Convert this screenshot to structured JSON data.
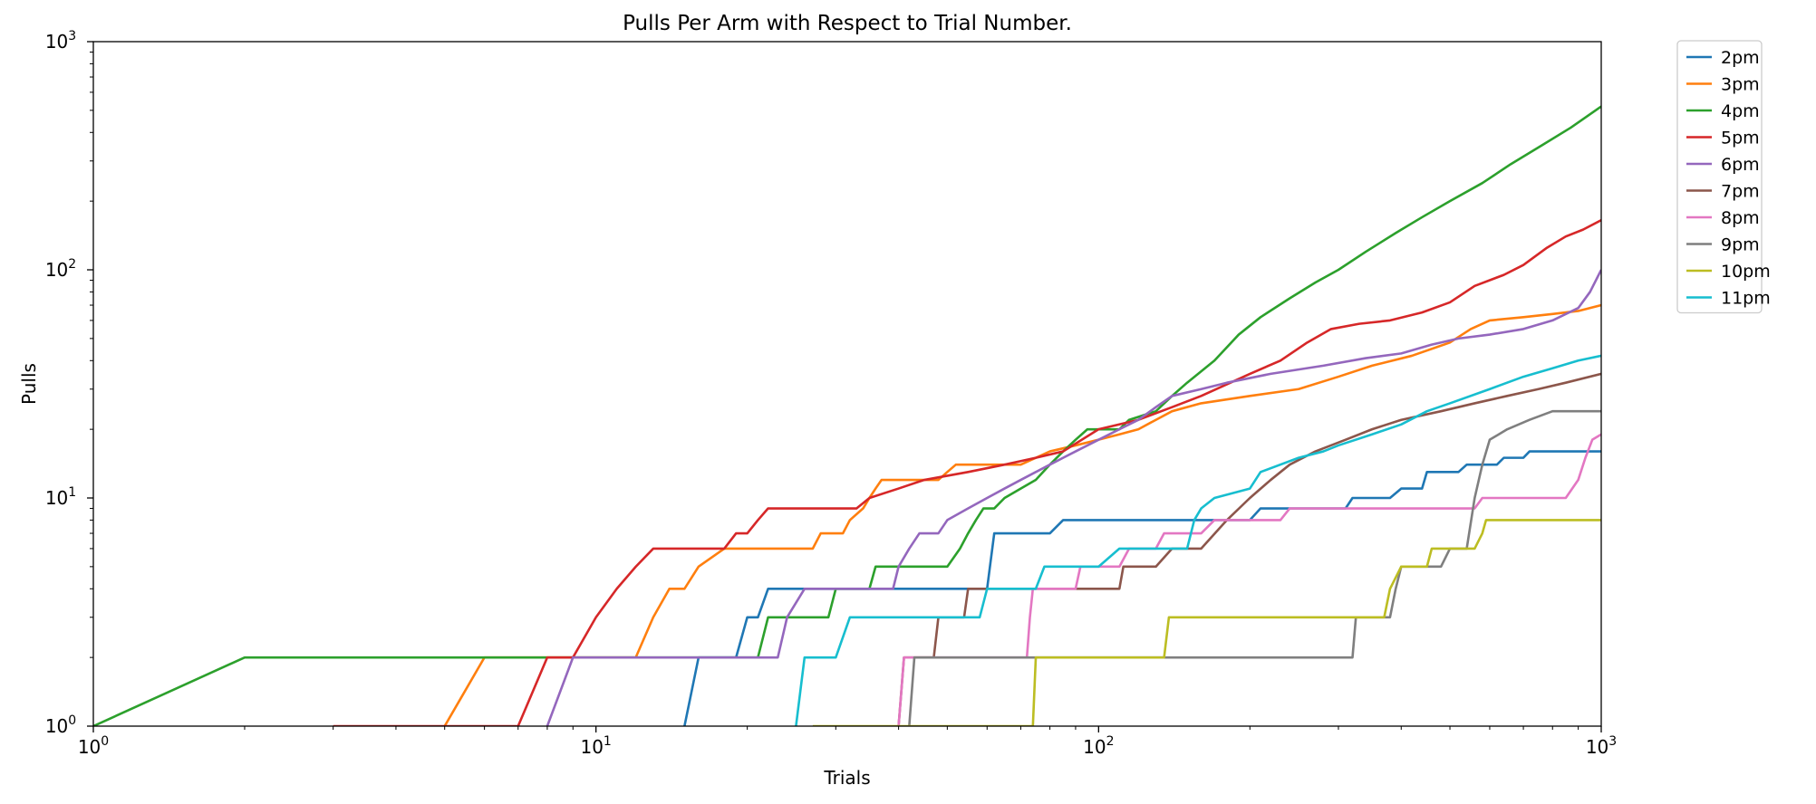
{
  "chart_data": {
    "type": "line",
    "title": "Pulls Per Arm with Respect to Trial Number.",
    "xlabel": "Trials",
    "ylabel": "Pulls",
    "xscale": "log",
    "yscale": "log",
    "xlim": [
      1,
      1000
    ],
    "ylim": [
      1,
      1000
    ],
    "grid": false,
    "legend_position": "outside-top-right",
    "x_ticks": [
      {
        "value": 1,
        "base": "10",
        "exp": "0"
      },
      {
        "value": 10,
        "base": "10",
        "exp": "1"
      },
      {
        "value": 100,
        "base": "10",
        "exp": "2"
      },
      {
        "value": 1000,
        "base": "10",
        "exp": "3"
      }
    ],
    "y_ticks": [
      {
        "value": 1,
        "base": "10",
        "exp": "0"
      },
      {
        "value": 10,
        "base": "10",
        "exp": "1"
      },
      {
        "value": 100,
        "base": "10",
        "exp": "2"
      },
      {
        "value": 1000,
        "base": "10",
        "exp": "3"
      }
    ],
    "series": [
      {
        "name": "2pm",
        "color": "#1f77b4",
        "points": [
          [
            15,
            1
          ],
          [
            16,
            2
          ],
          [
            19,
            2
          ],
          [
            20,
            3
          ],
          [
            21,
            3
          ],
          [
            22,
            4
          ],
          [
            60,
            4
          ],
          [
            62,
            7
          ],
          [
            80,
            7
          ],
          [
            85,
            8
          ],
          [
            200,
            8
          ],
          [
            210,
            9
          ],
          [
            310,
            9
          ],
          [
            320,
            10
          ],
          [
            380,
            10
          ],
          [
            400,
            11
          ],
          [
            440,
            11
          ],
          [
            450,
            13
          ],
          [
            520,
            13
          ],
          [
            540,
            14
          ],
          [
            620,
            14
          ],
          [
            640,
            15
          ],
          [
            700,
            15
          ],
          [
            720,
            16
          ],
          [
            1000,
            16
          ]
        ]
      },
      {
        "name": "3pm",
        "color": "#ff7f0e",
        "points": [
          [
            5,
            1
          ],
          [
            6,
            2
          ],
          [
            12,
            2
          ],
          [
            13,
            3
          ],
          [
            14,
            4
          ],
          [
            15,
            4
          ],
          [
            16,
            5
          ],
          [
            18,
            6
          ],
          [
            27,
            6
          ],
          [
            28,
            7
          ],
          [
            31,
            7
          ],
          [
            32,
            8
          ],
          [
            34,
            9
          ],
          [
            35,
            10
          ],
          [
            36,
            11
          ],
          [
            37,
            12
          ],
          [
            48,
            12
          ],
          [
            50,
            13
          ],
          [
            52,
            14
          ],
          [
            70,
            14
          ],
          [
            75,
            15
          ],
          [
            80,
            16
          ],
          [
            90,
            17
          ],
          [
            100,
            18
          ],
          [
            110,
            19
          ],
          [
            120,
            20
          ],
          [
            130,
            22
          ],
          [
            140,
            24
          ],
          [
            160,
            26
          ],
          [
            200,
            28
          ],
          [
            250,
            30
          ],
          [
            300,
            34
          ],
          [
            350,
            38
          ],
          [
            420,
            42
          ],
          [
            500,
            48
          ],
          [
            550,
            55
          ],
          [
            600,
            60
          ],
          [
            700,
            62
          ],
          [
            800,
            64
          ],
          [
            900,
            66
          ],
          [
            1000,
            70
          ]
        ]
      },
      {
        "name": "4pm",
        "color": "#2ca02c",
        "points": [
          [
            1,
            1
          ],
          [
            2,
            2
          ],
          [
            21,
            2
          ],
          [
            22,
            3
          ],
          [
            29,
            3
          ],
          [
            30,
            4
          ],
          [
            35,
            4
          ],
          [
            36,
            5
          ],
          [
            50,
            5
          ],
          [
            53,
            6
          ],
          [
            55,
            7
          ],
          [
            57,
            8
          ],
          [
            59,
            9
          ],
          [
            62,
            9
          ],
          [
            65,
            10
          ],
          [
            70,
            11
          ],
          [
            75,
            12
          ],
          [
            80,
            14
          ],
          [
            85,
            16
          ],
          [
            90,
            18
          ],
          [
            95,
            20
          ],
          [
            110,
            20
          ],
          [
            115,
            22
          ],
          [
            130,
            24
          ],
          [
            140,
            28
          ],
          [
            150,
            32
          ],
          [
            170,
            40
          ],
          [
            190,
            52
          ],
          [
            210,
            62
          ],
          [
            240,
            75
          ],
          [
            270,
            88
          ],
          [
            300,
            100
          ],
          [
            340,
            120
          ],
          [
            390,
            145
          ],
          [
            440,
            170
          ],
          [
            500,
            200
          ],
          [
            580,
            240
          ],
          [
            660,
            290
          ],
          [
            760,
            350
          ],
          [
            870,
            420
          ],
          [
            1000,
            520
          ]
        ]
      },
      {
        "name": "5pm",
        "color": "#d62728",
        "points": [
          [
            3,
            1
          ],
          [
            7,
            1
          ],
          [
            8,
            2
          ],
          [
            9,
            2
          ],
          [
            10,
            3
          ],
          [
            11,
            4
          ],
          [
            12,
            5
          ],
          [
            13,
            6
          ],
          [
            18,
            6
          ],
          [
            19,
            7
          ],
          [
            20,
            7
          ],
          [
            21,
            8
          ],
          [
            22,
            9
          ],
          [
            33,
            9
          ],
          [
            35,
            10
          ],
          [
            40,
            11
          ],
          [
            45,
            12
          ],
          [
            55,
            13
          ],
          [
            65,
            14
          ],
          [
            75,
            15
          ],
          [
            85,
            16
          ],
          [
            100,
            20
          ],
          [
            120,
            22
          ],
          [
            140,
            25
          ],
          [
            160,
            28
          ],
          [
            200,
            35
          ],
          [
            230,
            40
          ],
          [
            260,
            48
          ],
          [
            290,
            55
          ],
          [
            330,
            58
          ],
          [
            380,
            60
          ],
          [
            440,
            65
          ],
          [
            500,
            72
          ],
          [
            560,
            85
          ],
          [
            640,
            95
          ],
          [
            700,
            105
          ],
          [
            780,
            125
          ],
          [
            850,
            140
          ],
          [
            920,
            150
          ],
          [
            1000,
            165
          ]
        ]
      },
      {
        "name": "6pm",
        "color": "#9467bd",
        "points": [
          [
            8,
            1
          ],
          [
            9,
            2
          ],
          [
            23,
            2
          ],
          [
            24,
            3
          ],
          [
            26,
            4
          ],
          [
            39,
            4
          ],
          [
            40,
            5
          ],
          [
            42,
            6
          ],
          [
            44,
            7
          ],
          [
            48,
            7
          ],
          [
            50,
            8
          ],
          [
            55,
            9
          ],
          [
            60,
            10
          ],
          [
            65,
            11
          ],
          [
            70,
            12
          ],
          [
            75,
            13
          ],
          [
            80,
            14
          ],
          [
            85,
            15
          ],
          [
            90,
            16
          ],
          [
            100,
            18
          ],
          [
            110,
            20
          ],
          [
            120,
            22
          ],
          [
            130,
            25
          ],
          [
            140,
            28
          ],
          [
            160,
            30
          ],
          [
            180,
            32
          ],
          [
            220,
            35
          ],
          [
            280,
            38
          ],
          [
            340,
            41
          ],
          [
            400,
            43
          ],
          [
            460,
            47
          ],
          [
            520,
            50
          ],
          [
            600,
            52
          ],
          [
            700,
            55
          ],
          [
            800,
            60
          ],
          [
            900,
            68
          ],
          [
            950,
            80
          ],
          [
            1000,
            100
          ]
        ]
      },
      {
        "name": "7pm",
        "color": "#8c564b",
        "points": [
          [
            40,
            1
          ],
          [
            41,
            2
          ],
          [
            47,
            2
          ],
          [
            48,
            3
          ],
          [
            54,
            3
          ],
          [
            55,
            4
          ],
          [
            60,
            4
          ],
          [
            62,
            4
          ],
          [
            80,
            4
          ],
          [
            85,
            4
          ],
          [
            110,
            4
          ],
          [
            112,
            5
          ],
          [
            130,
            5
          ],
          [
            140,
            6
          ],
          [
            160,
            6
          ],
          [
            180,
            8
          ],
          [
            200,
            10
          ],
          [
            220,
            12
          ],
          [
            240,
            14
          ],
          [
            270,
            16
          ],
          [
            310,
            18
          ],
          [
            350,
            20
          ],
          [
            400,
            22
          ],
          [
            480,
            24
          ],
          [
            560,
            26
          ],
          [
            650,
            28
          ],
          [
            750,
            30
          ],
          [
            850,
            32
          ],
          [
            1000,
            35
          ]
        ]
      },
      {
        "name": "8pm",
        "color": "#e377c2",
        "points": [
          [
            40,
            1
          ],
          [
            41,
            2
          ],
          [
            72,
            2
          ],
          [
            73,
            3
          ],
          [
            74,
            4
          ],
          [
            90,
            4
          ],
          [
            92,
            5
          ],
          [
            110,
            5
          ],
          [
            115,
            6
          ],
          [
            130,
            6
          ],
          [
            135,
            7
          ],
          [
            160,
            7
          ],
          [
            170,
            8
          ],
          [
            230,
            8
          ],
          [
            240,
            9
          ],
          [
            400,
            9
          ],
          [
            420,
            9
          ],
          [
            560,
            9
          ],
          [
            580,
            10
          ],
          [
            850,
            10
          ],
          [
            900,
            12
          ],
          [
            930,
            15
          ],
          [
            960,
            18
          ],
          [
            1000,
            19
          ]
        ]
      },
      {
        "name": "9pm",
        "color": "#7f7f7f",
        "points": [
          [
            42,
            1
          ],
          [
            43,
            2
          ],
          [
            320,
            2
          ],
          [
            325,
            3
          ],
          [
            380,
            3
          ],
          [
            390,
            4
          ],
          [
            400,
            5
          ],
          [
            480,
            5
          ],
          [
            500,
            6
          ],
          [
            540,
            6
          ],
          [
            560,
            10
          ],
          [
            580,
            14
          ],
          [
            600,
            18
          ],
          [
            650,
            20
          ],
          [
            720,
            22
          ],
          [
            800,
            24
          ],
          [
            1000,
            24
          ]
        ]
      },
      {
        "name": "10pm",
        "color": "#bcbd22",
        "points": [
          [
            27,
            1
          ],
          [
            74,
            1
          ],
          [
            75,
            2
          ],
          [
            135,
            2
          ],
          [
            138,
            3
          ],
          [
            370,
            3
          ],
          [
            380,
            4
          ],
          [
            400,
            5
          ],
          [
            450,
            5
          ],
          [
            460,
            6
          ],
          [
            560,
            6
          ],
          [
            580,
            7
          ],
          [
            590,
            8
          ],
          [
            1000,
            8
          ]
        ]
      },
      {
        "name": "11pm",
        "color": "#17becf",
        "points": [
          [
            25,
            1
          ],
          [
            26,
            2
          ],
          [
            30,
            2
          ],
          [
            32,
            3
          ],
          [
            42,
            3
          ],
          [
            58,
            3
          ],
          [
            60,
            4
          ],
          [
            75,
            4
          ],
          [
            78,
            5
          ],
          [
            100,
            5
          ],
          [
            110,
            6
          ],
          [
            150,
            6
          ],
          [
            155,
            8
          ],
          [
            160,
            9
          ],
          [
            170,
            10
          ],
          [
            200,
            11
          ],
          [
            210,
            13
          ],
          [
            250,
            15
          ],
          [
            280,
            16
          ],
          [
            300,
            17
          ],
          [
            350,
            19
          ],
          [
            400,
            21
          ],
          [
            450,
            24
          ],
          [
            500,
            26
          ],
          [
            600,
            30
          ],
          [
            700,
            34
          ],
          [
            800,
            37
          ],
          [
            900,
            40
          ],
          [
            1000,
            42
          ]
        ]
      }
    ]
  }
}
